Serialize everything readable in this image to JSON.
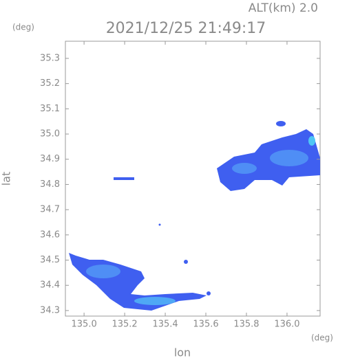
{
  "chart_data": {
    "type": "radar-map",
    "title": "2021/12/25 21:49:17",
    "subtitle": "ALT(km) 2.0",
    "y_unit": "(deg)",
    "x_unit": "(deg)",
    "xlabel": "lon",
    "ylabel": "lat",
    "xlim": [
      134.908,
      136.163
    ],
    "ylim": [
      34.278,
      35.368
    ],
    "xticks": [
      {
        "value": 135.0,
        "label": "135.0"
      },
      135.2,
      135.4,
      135.6,
      135.8,
      {
        "value": 136.0,
        "label": "136.0"
      }
    ],
    "yticks": [
      34.3,
      34.4,
      34.5,
      34.6,
      34.7,
      34.8,
      34.9,
      {
        "value": 35.0,
        "label": "35.0"
      },
      35.1,
      35.2,
      35.3
    ]
  }
}
